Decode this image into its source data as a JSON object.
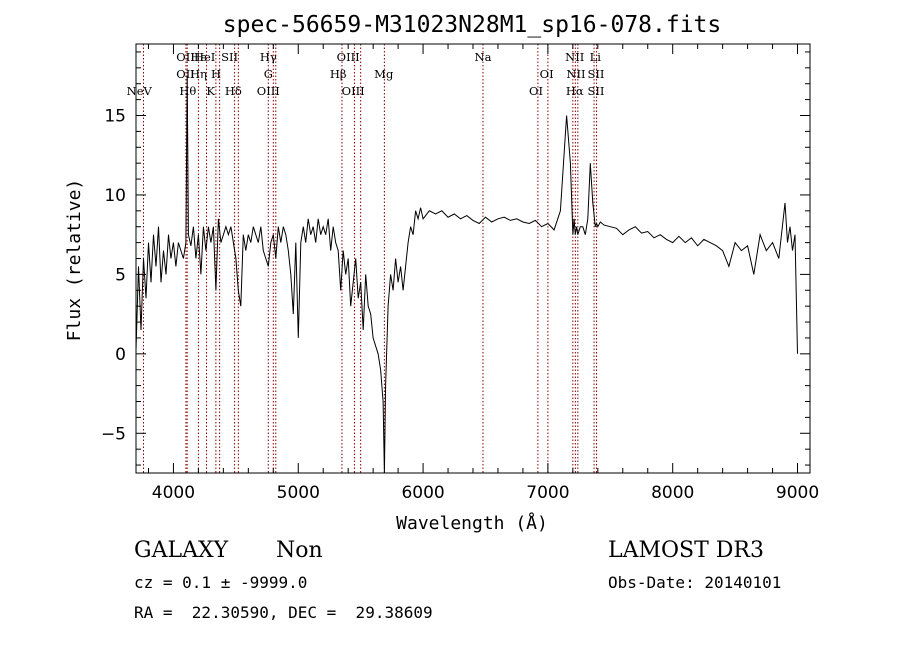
{
  "chart_data": {
    "type": "line",
    "title": "spec-56659-M31023N28M1_sp16-078.fits",
    "xlabel": "Wavelength (Å)",
    "ylabel": "Flux (relative)",
    "xlim": [
      3700,
      9100
    ],
    "ylim": [
      -7.5,
      19.5
    ],
    "x_ticks": [
      4000,
      5000,
      6000,
      7000,
      8000,
      9000
    ],
    "y_ticks": [
      -5,
      0,
      5,
      10,
      15
    ],
    "grid": false,
    "series": [
      {
        "x": [
          3700,
          3720,
          3740,
          3760,
          3780,
          3800,
          3820,
          3840,
          3860,
          3880,
          3900,
          3920,
          3940,
          3960,
          3980,
          4000,
          4020,
          4040,
          4060,
          4080,
          4100,
          4110,
          4120,
          4140,
          4160,
          4180,
          4200,
          4220,
          4240,
          4260,
          4280,
          4300,
          4320,
          4340,
          4360,
          4380,
          4400,
          4420,
          4440,
          4460,
          4480,
          4500,
          4520,
          4540,
          4560,
          4580,
          4600,
          4620,
          4640,
          4660,
          4680,
          4700,
          4720,
          4740,
          4760,
          4780,
          4800,
          4820,
          4840,
          4860,
          4880,
          4900,
          4920,
          4940,
          4960,
          4980,
          5000,
          5020,
          5040,
          5060,
          5080,
          5100,
          5120,
          5140,
          5160,
          5180,
          5200,
          5220,
          5240,
          5260,
          5280,
          5300,
          5320,
          5340,
          5360,
          5380,
          5400,
          5420,
          5440,
          5460,
          5480,
          5500,
          5520,
          5540,
          5560,
          5580,
          5600,
          5620,
          5640,
          5660,
          5680,
          5690,
          5700,
          5720,
          5740,
          5760,
          5780,
          5800,
          5820,
          5840,
          5860,
          5880,
          5900,
          5920,
          5940,
          5960,
          5980,
          6000,
          6050,
          6100,
          6150,
          6200,
          6250,
          6300,
          6350,
          6400,
          6450,
          6500,
          6550,
          6600,
          6650,
          6700,
          6750,
          6800,
          6850,
          6900,
          6950,
          7000,
          7050,
          7100,
          7150,
          7180,
          7200,
          7210,
          7220,
          7230,
          7240,
          7260,
          7280,
          7300,
          7320,
          7340,
          7360,
          7380,
          7390,
          7400,
          7420,
          7450,
          7500,
          7550,
          7600,
          7650,
          7700,
          7750,
          7800,
          7850,
          7900,
          7950,
          8000,
          8050,
          8100,
          8150,
          8200,
          8250,
          8300,
          8350,
          8400,
          8450,
          8500,
          8550,
          8600,
          8650,
          8700,
          8750,
          8800,
          8850,
          8900,
          8920,
          8940,
          8960,
          8980,
          9000
        ],
        "y": [
          0.2,
          5.5,
          1.5,
          6.0,
          3.5,
          7.0,
          4.5,
          7.5,
          5.5,
          8.0,
          4.5,
          6.5,
          5.0,
          7.5,
          6.0,
          7.0,
          5.5,
          7.0,
          6.5,
          6.0,
          7.0,
          17.5,
          7.5,
          6.8,
          8.0,
          6.0,
          7.5,
          5.0,
          8.0,
          6.5,
          8.0,
          7.0,
          8.0,
          4.0,
          8.5,
          7.0,
          7.5,
          8.0,
          7.5,
          8.0,
          7.0,
          6.0,
          4.0,
          3.0,
          7.5,
          6.5,
          7.5,
          7.0,
          8.0,
          7.5,
          7.0,
          8.0,
          6.5,
          6.0,
          5.5,
          7.0,
          7.5,
          6.0,
          8.0,
          7.0,
          8.0,
          7.5,
          6.5,
          5.0,
          2.5,
          7.0,
          1.0,
          7.0,
          8.0,
          7.0,
          8.5,
          7.5,
          8.0,
          7.0,
          8.5,
          7.5,
          8.0,
          7.5,
          8.5,
          6.5,
          8.0,
          7.0,
          6.5,
          4.0,
          6.5,
          5.0,
          6.0,
          3.0,
          4.5,
          6.0,
          3.5,
          4.5,
          1.5,
          5.0,
          3.0,
          2.5,
          1.0,
          0.5,
          0.0,
          -1.0,
          -3.0,
          -7.5,
          -2.0,
          3.0,
          5.0,
          4.0,
          6.0,
          4.5,
          5.5,
          4.0,
          5.5,
          7.0,
          8.0,
          7.5,
          9.0,
          8.5,
          9.2,
          8.5,
          9.0,
          8.8,
          9.0,
          8.6,
          8.8,
          8.5,
          8.7,
          8.4,
          8.2,
          8.6,
          8.3,
          8.5,
          8.6,
          8.4,
          8.5,
          8.3,
          8.2,
          8.4,
          8.0,
          8.2,
          7.8,
          9.0,
          15.0,
          12.0,
          7.5,
          8.5,
          7.5,
          8.0,
          7.5,
          8.0,
          8.0,
          7.5,
          8.5,
          12.0,
          9.5,
          8.0,
          8.2,
          8.0,
          8.3,
          8.1,
          8.0,
          7.9,
          7.5,
          7.8,
          8.0,
          7.6,
          7.7,
          7.3,
          7.5,
          7.2,
          7.0,
          7.4,
          7.0,
          7.3,
          6.8,
          7.2,
          7.0,
          6.8,
          6.5,
          5.5,
          7.0,
          6.5,
          6.8,
          5.0,
          7.5,
          6.5,
          7.0,
          6.0,
          9.5,
          7.0,
          8.0,
          6.5,
          7.5,
          0.0
        ]
      }
    ],
    "line_labels": [
      {
        "text": "NeV",
        "x": 3726,
        "row": 4
      },
      {
        "text": "OII",
        "x": 4097,
        "row": 1
      },
      {
        "text": "OII",
        "x": 4097,
        "row": 2
      },
      {
        "text": "Hθ",
        "x": 4115,
        "row": 3
      },
      {
        "text": "Hε",
        "x": 4200,
        "row": 1
      },
      {
        "text": "HeI",
        "x": 4250,
        "row": 1
      },
      {
        "text": "Hη",
        "x": 4200,
        "row": 2
      },
      {
        "text": "H",
        "x": 4341,
        "row": 2
      },
      {
        "text": "K",
        "x": 4298,
        "row": 3
      },
      {
        "text": "SII",
        "x": 4450,
        "row": 1
      },
      {
        "text": "Hδ",
        "x": 4480,
        "row": 3
      },
      {
        "text": "Hγ",
        "x": 4760,
        "row": 1
      },
      {
        "text": "G",
        "x": 4760,
        "row": 2
      },
      {
        "text": "OIII",
        "x": 4760,
        "row": 3
      },
      {
        "text": "OIII",
        "x": 5400,
        "row": 1
      },
      {
        "text": "Hβ",
        "x": 5320,
        "row": 2
      },
      {
        "text": "OIII",
        "x": 5440,
        "row": 3
      },
      {
        "text": "Mg",
        "x": 5685,
        "row": 2
      },
      {
        "text": "Na",
        "x": 6480,
        "row": 1
      },
      {
        "text": "OI",
        "x": 6990,
        "row": 2
      },
      {
        "text": "OI",
        "x": 6905,
        "row": 3
      },
      {
        "text": "NII",
        "x": 7215,
        "row": 1
      },
      {
        "text": "Li",
        "x": 7380,
        "row": 1
      },
      {
        "text": "NII",
        "x": 7225,
        "row": 2
      },
      {
        "text": "SII",
        "x": 7385,
        "row": 2
      },
      {
        "text": "Hα",
        "x": 7215,
        "row": 3
      },
      {
        "text": "SII",
        "x": 7385,
        "row": 3
      }
    ],
    "line_markers": [
      3760,
      4100,
      4110,
      4200,
      4265,
      4340,
      4370,
      4490,
      4520,
      4760,
      4800,
      4820,
      5350,
      5450,
      5500,
      5690,
      6480,
      6920,
      7000,
      7200,
      7220,
      7240,
      7370,
      7390
    ]
  },
  "info": {
    "object_class": "GALAXY",
    "subclass": "Non",
    "survey": "LAMOST DR3",
    "cz": "cz = 0.1 ± -9999.0",
    "obs_date": "Obs-Date: 20140101",
    "coords": "RA =  22.30590, DEC =  29.38609"
  },
  "colors": {
    "spectrum": "#000000",
    "line_markers": "#8b0000",
    "axes": "#000000",
    "background": "#ffffff"
  }
}
